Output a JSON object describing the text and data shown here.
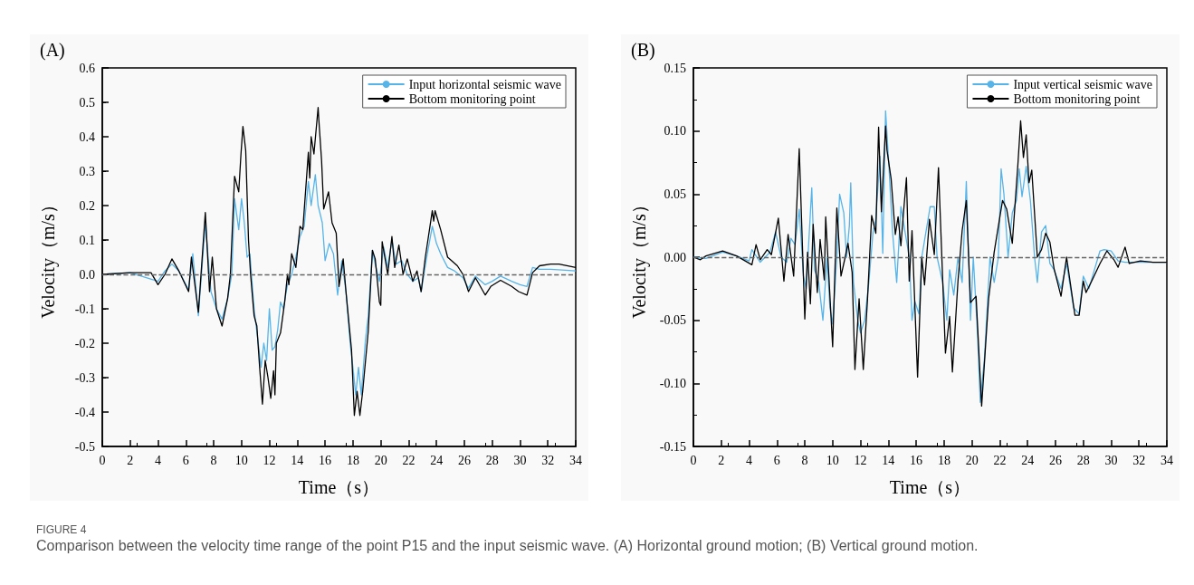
{
  "chart_data": [
    {
      "type": "line",
      "title": "(A)",
      "xlabel": "Time（s）",
      "ylabel": "Velocity（m/s）",
      "xlim": [
        0,
        34
      ],
      "xticks": [
        0,
        2,
        4,
        6,
        8,
        10,
        12,
        14,
        16,
        18,
        20,
        22,
        24,
        26,
        28,
        30,
        32,
        34
      ],
      "ylim": [
        -0.5,
        0.6
      ],
      "yticks": [
        -0.5,
        -0.4,
        -0.3,
        -0.2,
        -0.1,
        {
          "value": 0,
          "label": "0.0"
        },
        0.1,
        0.2,
        0.3,
        0.4,
        0.5,
        0.6
      ],
      "legend": "top right",
      "marker": "none",
      "line_style": "solid",
      "ref_lines": [
        {
          "axis": "y",
          "value": 0,
          "color": "#666666",
          "line_style": "dashed"
        }
      ],
      "annotations": [
        "FIGURE 4",
        "Comparison between the velocity time range of the point P15 and the input seismic wave. (A) Horizontal ground motion; (B) Vertical ground motion."
      ],
      "series": [
        {
          "name": "Input horizontal seismic wave",
          "color": "#56b4e9",
          "x": [
            0,
            2,
            4,
            4.5,
            5,
            5.5,
            6.2,
            6.5,
            6.9,
            7.4,
            7.8,
            8.2,
            8.6,
            9.0,
            9.3,
            9.5,
            9.8,
            10.0,
            10.2,
            10.4,
            10.6,
            10.9,
            11.2,
            11.4,
            11.6,
            11.8,
            12.0,
            12.2,
            12.4,
            12.6,
            12.8,
            13.0,
            13.3,
            13.6,
            13.9,
            14.2,
            14.5,
            14.8,
            15.0,
            15.3,
            15.5,
            15.8,
            16.0,
            16.3,
            16.6,
            16.9,
            17.2,
            17.5,
            17.8,
            18.0,
            18.2,
            18.4,
            18.6,
            18.9,
            19.1,
            19.4,
            19.6,
            19.9,
            20.2,
            20.5,
            20.8,
            21.1,
            21.5,
            21.9,
            22.3,
            22.7,
            22.9,
            23.3,
            23.7,
            24.0,
            24.3,
            24.8,
            25.3,
            25.9,
            26.3,
            26.8,
            27.5,
            28.0,
            28.6,
            29.4,
            30.0,
            30.5,
            30.9,
            31.4,
            32.2,
            33,
            34
          ],
          "values": [
            0,
            0.005,
            -0.02,
            0.01,
            0.03,
            0.01,
            -0.045,
            0.06,
            -0.12,
            0.15,
            -0.05,
            -0.1,
            -0.13,
            -0.07,
            0,
            0.22,
            0.13,
            0.22,
            0.15,
            0.05,
            0.06,
            -0.1,
            -0.2,
            -0.27,
            -0.2,
            -0.25,
            -0.1,
            -0.22,
            -0.21,
            -0.16,
            -0.08,
            -0.1,
            -0.03,
            0,
            0.05,
            0.11,
            0.14,
            0.27,
            0.2,
            0.29,
            0.2,
            0.15,
            0.04,
            0.09,
            0.06,
            -0.06,
            0.04,
            -0.05,
            -0.2,
            -0.27,
            -0.35,
            -0.27,
            -0.35,
            -0.19,
            -0.12,
            0.07,
            0.03,
            -0.02,
            0.08,
            0.02,
            0.1,
            0.03,
            0.04,
            0,
            -0.02,
            -0.01,
            -0.05,
            0.05,
            0.14,
            0.09,
            0.06,
            0.02,
            0.01,
            -0.01,
            -0.04,
            -0.005,
            -0.03,
            -0.02,
            -0.005,
            -0.02,
            -0.03,
            -0.035,
            0.02,
            0.015,
            0.015,
            0.013,
            0.01
          ]
        },
        {
          "name": "Bottom monitoring point",
          "color": "#000000",
          "x": [
            0,
            2,
            3.5,
            4,
            4.5,
            5,
            5.5,
            6.2,
            6.4,
            6.9,
            7.4,
            7.7,
            7.9,
            8.2,
            8.6,
            9.0,
            9.2,
            9.5,
            9.8,
            9.96,
            10.1,
            10.3,
            10.5,
            10.65,
            10.9,
            11.1,
            11.3,
            11.5,
            11.7,
            11.9,
            12.1,
            12.3,
            12.4,
            12.5,
            12.8,
            13.1,
            13.3,
            13.4,
            13.6,
            13.9,
            14.2,
            14.4,
            14.8,
            14.9,
            15.0,
            15.2,
            15.5,
            15.55,
            15.75,
            15.9,
            16.25,
            16.5,
            16.8,
            17.0,
            17.3,
            17.5,
            17.9,
            18.1,
            18.3,
            18.5,
            18.7,
            19.1,
            19.4,
            19.6,
            19.9,
            20.0,
            20.1,
            20.5,
            20.8,
            21.0,
            21.3,
            21.6,
            21.9,
            22.3,
            22.6,
            22.9,
            23.2,
            23.7,
            23.8,
            23.9,
            24.3,
            24.8,
            25.5,
            25.9,
            26.3,
            26.8,
            27.5,
            27.9,
            28.6,
            29.4,
            29.9,
            30.5,
            30.9,
            31.4,
            32.2,
            32.8,
            34
          ],
          "values": [
            0,
            0.005,
            0.005,
            -0.03,
            0,
            0.045,
            0.01,
            -0.05,
            0.05,
            -0.11,
            0.18,
            -0.05,
            0.05,
            -0.1,
            -0.15,
            -0.07,
            0,
            0.285,
            0.24,
            0.35,
            0.43,
            0.36,
            0.1,
            0,
            -0.12,
            -0.15,
            -0.27,
            -0.377,
            -0.25,
            -0.3,
            -0.36,
            -0.28,
            -0.35,
            -0.2,
            -0.17,
            -0.08,
            0,
            -0.03,
            0.06,
            0.02,
            0.14,
            0.13,
            0.355,
            0.28,
            0.4,
            0.35,
            0.485,
            0.45,
            0.33,
            0.19,
            0.24,
            0.15,
            0.12,
            -0.035,
            0.045,
            -0.05,
            -0.22,
            -0.41,
            -0.34,
            -0.41,
            -0.34,
            -0.165,
            0.07,
            0.045,
            -0.08,
            -0.09,
            0.095,
            0,
            0.11,
            0.02,
            0.085,
            0,
            0.045,
            -0.02,
            0.01,
            -0.05,
            0.05,
            0.185,
            0.155,
            0.185,
            0.13,
            0.05,
            0.025,
            0,
            -0.05,
            -0.01,
            -0.06,
            -0.035,
            -0.017,
            -0.035,
            -0.05,
            -0.06,
            0.005,
            0.025,
            0.03,
            0.03,
            0.02
          ]
        }
      ]
    },
    {
      "type": "line",
      "title": "(B)",
      "xlabel": "Time（s）",
      "ylabel": "Velocity（m/s）",
      "xlim": [
        0,
        34
      ],
      "xticks": [
        0,
        2,
        4,
        6,
        8,
        10,
        12,
        14,
        16,
        18,
        20,
        22,
        24,
        26,
        28,
        30,
        32,
        34
      ],
      "ylim": [
        -0.15,
        0.15
      ],
      "yticks": [
        -0.15,
        {
          "value": -0.1,
          "label": "-0.10"
        },
        -0.05,
        {
          "value": 0,
          "label": "0.00"
        },
        0.05,
        {
          "value": 0.1,
          "label": "0.10"
        },
        0.15
      ],
      "legend": "top right",
      "marker": "none",
      "line_style": "solid",
      "ref_lines": [
        {
          "axis": "y",
          "value": 0,
          "color": "#666666",
          "line_style": "dashed"
        }
      ],
      "series": [
        {
          "name": "Input vertical seismic wave",
          "color": "#56b4e9",
          "x": [
            0,
            0.9,
            2.1,
            3.1,
            4.0,
            4.2,
            4.8,
            5.5,
            5.9,
            6.3,
            6.7,
            7.0,
            7.3,
            7.6,
            7.9,
            8.1,
            8.5,
            8.7,
            9.0,
            9.3,
            9.6,
            9.8,
            10.0,
            10.3,
            10.5,
            10.8,
            11.0,
            11.2,
            11.3,
            11.5,
            11.8,
            12.0,
            12.3,
            12.6,
            12.9,
            13.1,
            13.4,
            13.6,
            13.8,
            14.0,
            14.3,
            14.6,
            14.9,
            15.2,
            15.5,
            15.7,
            15.9,
            16.2,
            16.4,
            16.7,
            17.0,
            17.3,
            17.5,
            17.9,
            18.2,
            18.4,
            18.7,
            19.0,
            19.3,
            19.6,
            19.9,
            20.1,
            20.4,
            20.6,
            20.9,
            21.3,
            21.6,
            21.9,
            22.1,
            22.3,
            22.6,
            22.9,
            23.2,
            23.4,
            23.6,
            23.9,
            24.2,
            24.5,
            24.7,
            25.0,
            25.3,
            25.6,
            25.9,
            26.4,
            26.8,
            27.3,
            27.7,
            28.0,
            28.4,
            28.8,
            29.2,
            29.5,
            30.0,
            30.5,
            31.0,
            32,
            34
          ],
          "values": [
            0,
            -0.001,
            0.004,
            0.001,
            -0.003,
            0.006,
            -0.004,
            0.004,
            0.02,
            0,
            -0.004,
            0.015,
            0.01,
            0.038,
            -0.015,
            -0.025,
            0.055,
            -0.01,
            -0.02,
            -0.05,
            0,
            -0.04,
            -0.053,
            0,
            0.05,
            0.035,
            0,
            0.025,
            0.059,
            -0.02,
            -0.05,
            -0.06,
            -0.05,
            -0.02,
            0.02,
            0.03,
            0.08,
            0.003,
            0.116,
            0.08,
            0.02,
            -0.02,
            0.04,
            0.02,
            0,
            -0.05,
            -0.035,
            -0.045,
            0,
            0.02,
            0.04,
            0.04,
            0,
            -0.02,
            -0.05,
            -0.01,
            -0.03,
            0,
            -0.02,
            0.06,
            -0.05,
            0,
            -0.06,
            -0.115,
            -0.08,
            0,
            -0.02,
            0,
            0.07,
            0.05,
            0,
            0.035,
            0.045,
            0.07,
            0.048,
            0.072,
            0.045,
            0,
            -0.02,
            0.02,
            0.025,
            -0.005,
            -0.01,
            -0.025,
            -0.005,
            -0.04,
            -0.045,
            -0.015,
            -0.025,
            -0.01,
            0.005,
            0.006,
            0.005,
            -0.003,
            -0.004,
            -0.004,
            -0.004
          ]
        },
        {
          "name": "Bottom monitoring point",
          "color": "#000000",
          "x": [
            0,
            0.5,
            0.9,
            2.1,
            3.1,
            4.2,
            4.5,
            4.8,
            5.3,
            5.6,
            6.1,
            6.5,
            6.8,
            7.2,
            7.6,
            8.0,
            8.2,
            8.4,
            8.6,
            8.9,
            9.1,
            9.4,
            9.5,
            10.0,
            10.3,
            10.6,
            10.9,
            11.1,
            11.4,
            11.6,
            11.9,
            12.2,
            12.5,
            12.8,
            13.1,
            13.3,
            13.5,
            13.8,
            13.9,
            14.2,
            14.5,
            14.7,
            14.9,
            15.1,
            15.3,
            15.5,
            15.7,
            16.1,
            16.4,
            16.6,
            16.95,
            17.3,
            17.6,
            18.1,
            18.4,
            18.6,
            19.0,
            19.3,
            19.6,
            19.9,
            20.3,
            20.7,
            21.2,
            21.6,
            22.2,
            22.5,
            22.9,
            23.3,
            23.5,
            23.7,
            23.9,
            24.1,
            24.3,
            24.7,
            25.0,
            25.3,
            25.6,
            25.9,
            26.4,
            26.8,
            27.4,
            27.7,
            28.0,
            28.2,
            28.6,
            29.2,
            29.7,
            30.2,
            30.5,
            31.0,
            31.3,
            32.1,
            33.0,
            34
          ],
          "values": [
            0,
            -0.002,
            0.001,
            0.005,
            0.001,
            -0.006,
            0.01,
            -0.002,
            0.006,
            0.002,
            0.031,
            -0.019,
            0.018,
            -0.015,
            0.086,
            -0.049,
            0.004,
            -0.037,
            0.026,
            -0.028,
            0.014,
            -0.018,
            0.032,
            -0.071,
            0.039,
            -0.015,
            0,
            0.011,
            -0.012,
            -0.089,
            -0.033,
            -0.089,
            -0.034,
            0.033,
            0.019,
            0.103,
            0.036,
            0.104,
            0.085,
            0.062,
            0.018,
            0.032,
            0.009,
            0.037,
            0.063,
            -0.019,
            0.021,
            -0.095,
            0,
            -0.022,
            0.03,
            0.002,
            0.071,
            -0.076,
            -0.047,
            -0.091,
            -0.019,
            0.021,
            0.045,
            -0.036,
            -0.031,
            -0.118,
            -0.033,
            0.004,
            0.045,
            0.038,
            0.011,
            0.073,
            0.108,
            0.079,
            0.097,
            0.059,
            0.069,
            0,
            0.006,
            0.019,
            0.012,
            -0.009,
            -0.031,
            0,
            -0.046,
            -0.046,
            -0.019,
            -0.028,
            -0.019,
            -0.005,
            0.005,
            -0.002,
            -0.008,
            0.008,
            -0.005,
            -0.003,
            -0.004,
            -0.004
          ]
        }
      ]
    }
  ]
}
